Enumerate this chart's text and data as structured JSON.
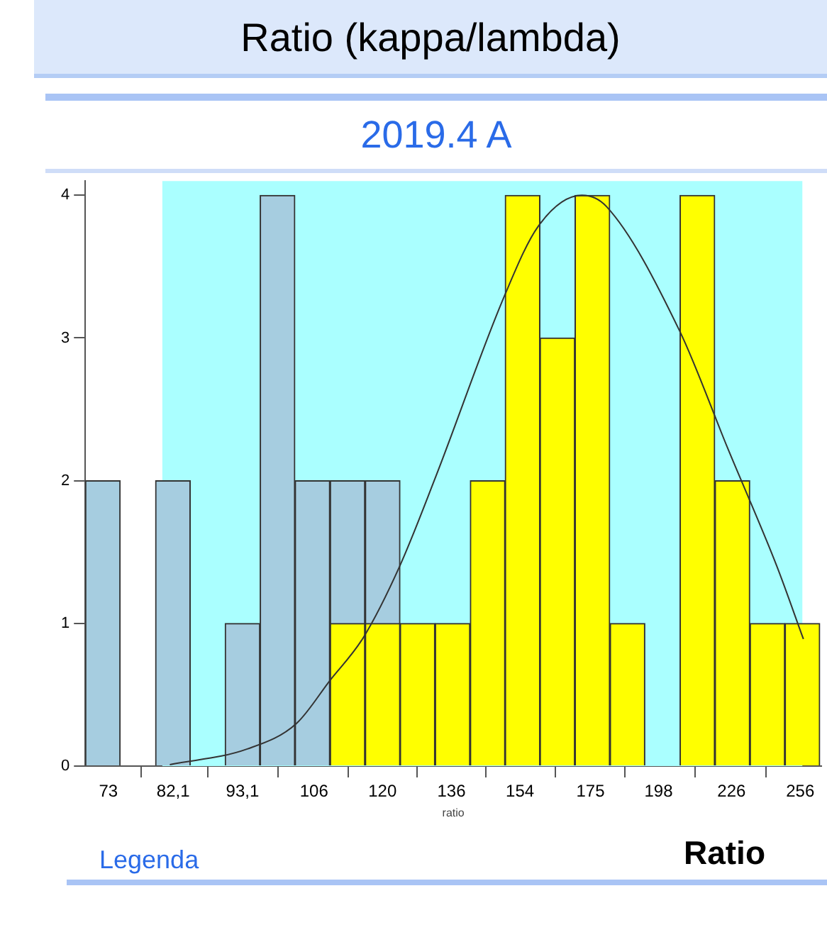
{
  "chart_data": {
    "type": "histogram",
    "title": "Ratio (kappa/lambda)",
    "subtitle": "2019.4 A",
    "xlabel": "ratio",
    "annotations": [
      "Legenda",
      "Ratio"
    ],
    "log": "x",
    "bins": [
      70.0,
      74.6,
      79.5,
      84.7,
      90.2,
      96.1,
      102.4,
      109.1,
      116.3,
      123.9,
      132.0,
      140.7,
      149.9,
      159.7,
      170.1,
      181.3,
      193.2,
      205.8,
      219.3,
      233.7,
      249.0,
      265.3
    ],
    "series": [
      {
        "color": "#a6cde0",
        "values": [
          2,
          0,
          2,
          0,
          1,
          4,
          2,
          2,
          2,
          0,
          0,
          0,
          0,
          0,
          0,
          0,
          0,
          0,
          0,
          0,
          0
        ]
      },
      {
        "color": "#ffff00",
        "values": [
          0,
          0,
          0,
          0,
          0,
          0,
          0,
          1,
          1,
          1,
          1,
          2,
          4,
          3,
          4,
          1,
          0,
          4,
          2,
          1,
          1
        ]
      },
      {
        "type": "line",
        "color": "#333333",
        "marker": "none",
        "x": [
          81.6,
          93.9,
          102.7,
          109.1,
          115.9,
          123.8,
          132.2,
          149.8,
          159.1,
          172.3,
          180.2,
          205.7,
          224.4,
          245.4,
          257.5
        ],
        "values": [
          0.01,
          0.12,
          0.3,
          0.6,
          0.9,
          1.4,
          2.03,
          3.3,
          3.78,
          4.0,
          3.92,
          3.05,
          2.23,
          1.4,
          0.89
        ]
      }
    ],
    "bands": [
      {
        "axis": "x",
        "from": 80.5,
        "to": 257,
        "color": "#aaffff"
      }
    ],
    "xlim": [
      70,
      266
    ],
    "ylim": [
      0,
      4.1
    ],
    "xticks": [
      73,
      {
        "value": 82.1,
        "label": "82,1"
      },
      {
        "value": 93.1,
        "label": "93,1"
      },
      106,
      120,
      136,
      154,
      175,
      198,
      226,
      256
    ],
    "yticks": [
      0,
      1,
      2,
      3,
      4
    ],
    "grid": false,
    "legend": false
  }
}
